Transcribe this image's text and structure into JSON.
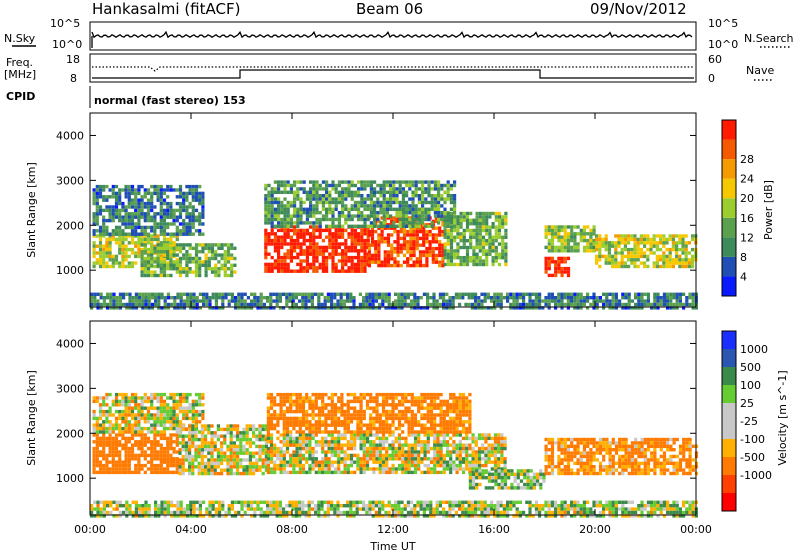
{
  "header": {
    "station": "Hankasalmi (fitACF)",
    "beam": "Beam 06",
    "date": "09/Nov/2012"
  },
  "top_panels": {
    "nsky_label": "N.Sky",
    "nsearch_label": "N.Search",
    "freq_label_1": "Freq.",
    "freq_label_2": "[MHz]",
    "nave_label": "Nave",
    "cpid_label": "CPID",
    "cpid_text": "normal (fast stereo) 153",
    "noise_ticks_left": [
      "10^5",
      "10^0"
    ],
    "noise_ticks_right": [
      "10^5",
      "10^0"
    ],
    "freq_ticks": [
      "18",
      "8"
    ],
    "nave_ticks": [
      "60",
      "0"
    ]
  },
  "x_axis": {
    "label": "Time UT",
    "ticks": [
      "00:00",
      "04:00",
      "08:00",
      "12:00",
      "16:00",
      "20:00",
      "00:00"
    ]
  },
  "colors": {
    "power": [
      "#0a1aff",
      "#1f4fb4",
      "#3f8a5a",
      "#5aa04e",
      "#9ccd2e",
      "#f5c800",
      "#f59a00",
      "#f55a00",
      "#ff1a00"
    ],
    "velocity": [
      "#1a2fff",
      "#2a55b0",
      "#3b8a4a",
      "#66cc33",
      "#c8c8c8",
      "#c8c8c8",
      "#ffb000",
      "#ff7a00",
      "#ff4000",
      "#ff0000"
    ]
  },
  "chart_data": [
    {
      "type": "heatmap",
      "title": "",
      "xlabel": "Time UT",
      "ylabel": "Slant Range [km]",
      "xlim": [
        0,
        24
      ],
      "ylim": [
        180,
        4500
      ],
      "yticks": [
        "1000",
        "2000",
        "3000",
        "4000"
      ],
      "colorbar_label": "Power [dB]",
      "colorbar_ticks": [
        "4",
        "8",
        "12",
        "16",
        "20",
        "24",
        "28"
      ],
      "regions": [
        {
          "t": [
            0.1,
            3.5
          ],
          "r": [
            1100,
            1800
          ],
          "level": 16
        },
        {
          "t": [
            0.1,
            4.5
          ],
          "r": [
            1800,
            2900
          ],
          "level": 8
        },
        {
          "t": [
            2.0,
            5.8
          ],
          "r": [
            900,
            1600
          ],
          "level": 12
        },
        {
          "t": [
            6.9,
            11.0
          ],
          "r": [
            1000,
            2000
          ],
          "level": 28
        },
        {
          "t": [
            11.0,
            14.0
          ],
          "r": [
            1100,
            2200
          ],
          "level": 26
        },
        {
          "t": [
            6.9,
            14.5
          ],
          "r": [
            2000,
            3000
          ],
          "level": 10
        },
        {
          "t": [
            14.0,
            16.5
          ],
          "r": [
            1100,
            2300
          ],
          "level": 12
        },
        {
          "t": [
            18.0,
            19.0
          ],
          "r": [
            900,
            1300
          ],
          "level": 28
        },
        {
          "t": [
            18.0,
            20.0
          ],
          "r": [
            1400,
            2000
          ],
          "level": 14
        },
        {
          "t": [
            20.0,
            24.0
          ],
          "r": [
            1100,
            1800
          ],
          "level": 16
        },
        {
          "t": [
            0.0,
            24.0
          ],
          "r": [
            180,
            500
          ],
          "level": 8
        }
      ]
    },
    {
      "type": "heatmap",
      "title": "",
      "xlabel": "Time UT",
      "ylabel": "Slant Range [km]",
      "xlim": [
        0,
        24
      ],
      "ylim": [
        180,
        4500
      ],
      "yticks": [
        "1000",
        "2000",
        "3000",
        "4000"
      ],
      "colorbar_label": "Velocity [m s^-1]",
      "colorbar_ticks": [
        "1000",
        "500",
        "100",
        "25",
        "-25",
        "-100",
        "-500",
        "-1000"
      ],
      "regions": [
        {
          "t": [
            0.1,
            3.5
          ],
          "r": [
            1100,
            2000
          ],
          "v": -300
        },
        {
          "t": [
            0.1,
            4.5
          ],
          "r": [
            2000,
            2900
          ],
          "v": 0
        },
        {
          "t": [
            3.5,
            7.0
          ],
          "r": [
            1100,
            2200
          ],
          "v": 0
        },
        {
          "t": [
            7.0,
            16.5
          ],
          "r": [
            1100,
            2000
          ],
          "v": 0
        },
        {
          "t": [
            7.0,
            15.0
          ],
          "r": [
            2000,
            2900
          ],
          "v": -200
        },
        {
          "t": [
            15.0,
            18.0
          ],
          "r": [
            800,
            1200
          ],
          "v": 80
        },
        {
          "t": [
            18.0,
            24.0
          ],
          "r": [
            1100,
            1900
          ],
          "v": -150
        },
        {
          "t": [
            0.0,
            24.0
          ],
          "r": [
            180,
            500
          ],
          "v": 40
        }
      ]
    }
  ]
}
